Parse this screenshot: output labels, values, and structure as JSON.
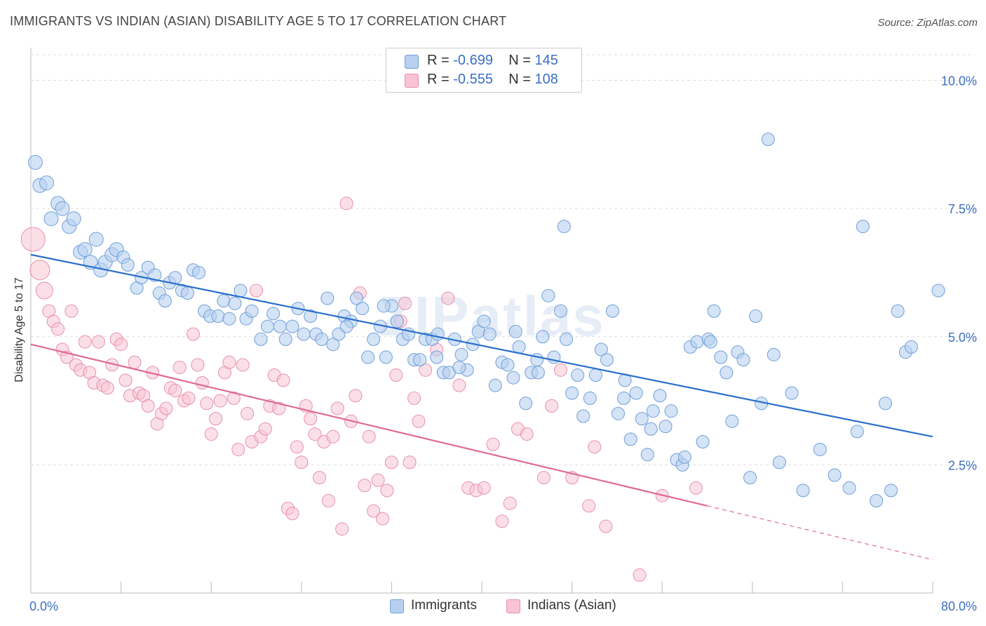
{
  "header": {
    "title": "IMMIGRANTS VS INDIAN (ASIAN) DISABILITY AGE 5 TO 17 CORRELATION CHART",
    "source": "Source: ZipAtlas.com"
  },
  "watermark": "ZIPatlas",
  "legend": {
    "r_label": "R = ",
    "n_label": "N = ",
    "rows": [
      {
        "r": "-0.699",
        "n": "145"
      },
      {
        "r": "-0.555",
        "n": "108"
      }
    ]
  },
  "colors": {
    "immigrants_fill": "#b8d0f0",
    "immigrants_stroke": "#6f9fd8",
    "immigrants_line": "#2a6fcc",
    "indians_fill": "#f8c4d4",
    "indians_stroke": "#e890ac",
    "indians_line": "#e06a94",
    "value_text": "#3b6fc4"
  },
  "chart_data": {
    "type": "scatter",
    "title": "IMMIGRANTS VS INDIAN (ASIAN) DISABILITY AGE 5 TO 17 CORRELATION CHART",
    "xlabel": "",
    "ylabel": "Disability Age 5 to 17",
    "xlim": [
      0,
      80
    ],
    "ylim": [
      0,
      10.5
    ],
    "x_tick_labels": [
      "0.0%",
      "80.0%"
    ],
    "y_ticks": [
      2.5,
      5.0,
      7.5,
      10.0
    ],
    "y_tick_labels": [
      "2.5%",
      "5.0%",
      "7.5%",
      "10.0%"
    ],
    "grid": true,
    "legend_position": "top-center",
    "series": [
      {
        "name": "Immigrants",
        "r": -0.699,
        "n": 145,
        "trend": {
          "x0": 0,
          "y0": 6.6,
          "x1": 80,
          "y1": 3.05
        },
        "points": [
          [
            0.4,
            8.4
          ],
          [
            0.8,
            7.95
          ],
          [
            1.4,
            8.0
          ],
          [
            1.8,
            7.3
          ],
          [
            2.4,
            7.6
          ],
          [
            2.8,
            7.5
          ],
          [
            3.4,
            7.15
          ],
          [
            3.8,
            7.3
          ],
          [
            4.4,
            6.65
          ],
          [
            4.8,
            6.7
          ],
          [
            5.3,
            6.45
          ],
          [
            5.8,
            6.9
          ],
          [
            6.2,
            6.3
          ],
          [
            6.6,
            6.45
          ],
          [
            7.2,
            6.6
          ],
          [
            7.6,
            6.7
          ],
          [
            8.2,
            6.55
          ],
          [
            8.6,
            6.4
          ],
          [
            9.4,
            5.95
          ],
          [
            9.8,
            6.15
          ],
          [
            10.4,
            6.35
          ],
          [
            11.0,
            6.2
          ],
          [
            11.4,
            5.85
          ],
          [
            11.9,
            5.7
          ],
          [
            12.3,
            6.05
          ],
          [
            12.8,
            6.15
          ],
          [
            13.4,
            5.9
          ],
          [
            13.9,
            5.85
          ],
          [
            14.4,
            6.3
          ],
          [
            14.9,
            6.25
          ],
          [
            15.4,
            5.5
          ],
          [
            15.9,
            5.4
          ],
          [
            16.6,
            5.4
          ],
          [
            17.1,
            5.7
          ],
          [
            17.6,
            5.35
          ],
          [
            18.1,
            5.65
          ],
          [
            18.6,
            5.9
          ],
          [
            19.1,
            5.35
          ],
          [
            19.6,
            5.5
          ],
          [
            20.4,
            4.95
          ],
          [
            21.0,
            5.2
          ],
          [
            21.5,
            5.45
          ],
          [
            22.1,
            5.2
          ],
          [
            22.6,
            4.95
          ],
          [
            23.2,
            5.2
          ],
          [
            23.7,
            5.55
          ],
          [
            24.2,
            5.05
          ],
          [
            24.8,
            5.4
          ],
          [
            25.3,
            5.05
          ],
          [
            25.8,
            4.95
          ],
          [
            26.3,
            5.75
          ],
          [
            26.8,
            4.85
          ],
          [
            27.3,
            5.05
          ],
          [
            27.8,
            5.4
          ],
          [
            28.4,
            5.3
          ],
          [
            28.9,
            5.75
          ],
          [
            29.4,
            5.55
          ],
          [
            29.9,
            4.6
          ],
          [
            30.4,
            4.95
          ],
          [
            31.0,
            5.2
          ],
          [
            31.5,
            4.6
          ],
          [
            32.0,
            5.6
          ],
          [
            32.5,
            5.3
          ],
          [
            33.0,
            4.95
          ],
          [
            33.5,
            5.05
          ],
          [
            34.0,
            4.55
          ],
          [
            34.5,
            4.55
          ],
          [
            35.0,
            4.95
          ],
          [
            35.6,
            4.95
          ],
          [
            36.1,
            5.05
          ],
          [
            36.6,
            4.3
          ],
          [
            37.1,
            4.3
          ],
          [
            37.6,
            4.95
          ],
          [
            38.2,
            4.65
          ],
          [
            38.7,
            4.35
          ],
          [
            39.2,
            4.85
          ],
          [
            39.7,
            5.1
          ],
          [
            40.2,
            5.3
          ],
          [
            40.7,
            5.05
          ],
          [
            41.2,
            4.05
          ],
          [
            41.8,
            4.5
          ],
          [
            42.3,
            4.45
          ],
          [
            42.8,
            4.2
          ],
          [
            43.3,
            4.8
          ],
          [
            43.9,
            3.7
          ],
          [
            44.4,
            4.3
          ],
          [
            44.9,
            4.55
          ],
          [
            45.4,
            5.0
          ],
          [
            45.9,
            5.8
          ],
          [
            46.4,
            4.6
          ],
          [
            47.0,
            5.5
          ],
          [
            47.5,
            4.95
          ],
          [
            48.0,
            3.9
          ],
          [
            48.5,
            4.25
          ],
          [
            49.0,
            3.45
          ],
          [
            49.6,
            3.8
          ],
          [
            50.1,
            4.25
          ],
          [
            50.6,
            4.75
          ],
          [
            51.1,
            4.55
          ],
          [
            51.6,
            5.5
          ],
          [
            52.1,
            3.5
          ],
          [
            52.7,
            4.15
          ],
          [
            53.2,
            3.0
          ],
          [
            53.7,
            3.9
          ],
          [
            54.2,
            3.4
          ],
          [
            54.7,
            2.7
          ],
          [
            55.2,
            3.55
          ],
          [
            55.8,
            3.85
          ],
          [
            56.3,
            3.25
          ],
          [
            56.8,
            3.55
          ],
          [
            57.3,
            2.6
          ],
          [
            57.8,
            2.5
          ],
          [
            58.5,
            4.8
          ],
          [
            59.1,
            4.9
          ],
          [
            59.6,
            2.95
          ],
          [
            60.1,
            4.95
          ],
          [
            60.6,
            5.5
          ],
          [
            61.2,
            4.6
          ],
          [
            61.7,
            4.3
          ],
          [
            62.2,
            3.35
          ],
          [
            62.7,
            4.7
          ],
          [
            63.2,
            4.55
          ],
          [
            63.8,
            2.25
          ],
          [
            64.3,
            5.4
          ],
          [
            64.8,
            3.7
          ],
          [
            65.4,
            8.85
          ],
          [
            65.9,
            4.65
          ],
          [
            66.4,
            2.55
          ],
          [
            67.5,
            3.9
          ],
          [
            68.5,
            2.0
          ],
          [
            70.0,
            2.8
          ],
          [
            71.3,
            2.3
          ],
          [
            72.6,
            2.05
          ],
          [
            73.3,
            3.15
          ],
          [
            73.8,
            7.15
          ],
          [
            75.0,
            1.8
          ],
          [
            75.8,
            3.7
          ],
          [
            76.3,
            2.0
          ],
          [
            76.9,
            5.5
          ],
          [
            77.6,
            4.7
          ],
          [
            78.1,
            4.8
          ],
          [
            80.5,
            5.9
          ],
          [
            47.3,
            7.15
          ],
          [
            58.0,
            2.65
          ],
          [
            45.0,
            4.3
          ],
          [
            31.3,
            5.6
          ],
          [
            38.0,
            4.4
          ],
          [
            28.0,
            5.2
          ],
          [
            43.0,
            5.1
          ],
          [
            36.0,
            4.6
          ],
          [
            60.3,
            4.9
          ],
          [
            55.0,
            3.2
          ],
          [
            52.6,
            3.8
          ]
        ]
      },
      {
        "name": "Indians (Asian)",
        "r": -0.555,
        "n": 108,
        "trend": {
          "x0": 0,
          "y0": 4.85,
          "x1": 60,
          "y1": 1.7,
          "dash_to_x": 80,
          "dash_to_y": 0.65
        },
        "points": [
          [
            0.2,
            6.9
          ],
          [
            0.8,
            6.3
          ],
          [
            1.2,
            5.9
          ],
          [
            1.6,
            5.5
          ],
          [
            2.0,
            5.3
          ],
          [
            2.4,
            5.15
          ],
          [
            2.8,
            4.75
          ],
          [
            3.2,
            4.6
          ],
          [
            3.6,
            5.5
          ],
          [
            4.0,
            4.45
          ],
          [
            4.4,
            4.35
          ],
          [
            4.8,
            4.9
          ],
          [
            5.2,
            4.3
          ],
          [
            5.6,
            4.1
          ],
          [
            6.0,
            4.9
          ],
          [
            6.4,
            4.05
          ],
          [
            6.8,
            4.0
          ],
          [
            7.2,
            4.45
          ],
          [
            7.6,
            4.95
          ],
          [
            8.0,
            4.85
          ],
          [
            8.4,
            4.15
          ],
          [
            8.8,
            3.85
          ],
          [
            9.2,
            4.5
          ],
          [
            9.6,
            3.9
          ],
          [
            10.0,
            3.85
          ],
          [
            10.4,
            3.65
          ],
          [
            10.8,
            4.3
          ],
          [
            11.2,
            3.3
          ],
          [
            11.6,
            3.5
          ],
          [
            12.0,
            3.6
          ],
          [
            12.4,
            4.0
          ],
          [
            12.8,
            3.95
          ],
          [
            13.2,
            4.4
          ],
          [
            13.6,
            3.75
          ],
          [
            14.0,
            3.8
          ],
          [
            14.4,
            5.05
          ],
          [
            14.8,
            4.45
          ],
          [
            15.2,
            4.1
          ],
          [
            15.6,
            3.7
          ],
          [
            16.0,
            3.1
          ],
          [
            16.4,
            3.4
          ],
          [
            16.8,
            3.75
          ],
          [
            17.2,
            4.3
          ],
          [
            17.6,
            4.5
          ],
          [
            18.0,
            3.8
          ],
          [
            18.4,
            2.8
          ],
          [
            18.8,
            4.45
          ],
          [
            19.2,
            3.5
          ],
          [
            19.6,
            2.95
          ],
          [
            20.0,
            5.9
          ],
          [
            20.4,
            3.05
          ],
          [
            20.8,
            3.2
          ],
          [
            21.2,
            3.65
          ],
          [
            21.6,
            4.25
          ],
          [
            22.0,
            3.6
          ],
          [
            22.4,
            4.15
          ],
          [
            22.8,
            1.65
          ],
          [
            23.2,
            1.55
          ],
          [
            23.6,
            2.85
          ],
          [
            24.0,
            2.55
          ],
          [
            24.4,
            3.65
          ],
          [
            24.8,
            3.4
          ],
          [
            25.2,
            3.1
          ],
          [
            25.6,
            2.25
          ],
          [
            26.0,
            2.95
          ],
          [
            26.4,
            1.8
          ],
          [
            26.8,
            3.05
          ],
          [
            27.2,
            3.6
          ],
          [
            27.6,
            1.25
          ],
          [
            28.0,
            7.6
          ],
          [
            28.4,
            3.35
          ],
          [
            28.8,
            3.85
          ],
          [
            29.2,
            5.85
          ],
          [
            29.6,
            2.1
          ],
          [
            30.0,
            3.05
          ],
          [
            30.4,
            1.6
          ],
          [
            30.8,
            2.2
          ],
          [
            31.2,
            1.45
          ],
          [
            31.6,
            2.0
          ],
          [
            32.0,
            2.55
          ],
          [
            32.4,
            4.25
          ],
          [
            32.8,
            5.3
          ],
          [
            33.2,
            5.65
          ],
          [
            33.6,
            2.55
          ],
          [
            34.0,
            3.8
          ],
          [
            34.4,
            3.35
          ],
          [
            35.0,
            4.35
          ],
          [
            36.0,
            4.75
          ],
          [
            37.0,
            5.75
          ],
          [
            38.0,
            4.05
          ],
          [
            38.8,
            2.05
          ],
          [
            39.5,
            2.0
          ],
          [
            40.2,
            2.05
          ],
          [
            41.0,
            2.9
          ],
          [
            41.8,
            1.4
          ],
          [
            42.5,
            1.75
          ],
          [
            43.2,
            3.2
          ],
          [
            44.0,
            3.1
          ],
          [
            45.5,
            2.25
          ],
          [
            46.2,
            3.65
          ],
          [
            47.0,
            4.35
          ],
          [
            48.0,
            2.25
          ],
          [
            49.5,
            1.7
          ],
          [
            50.0,
            2.85
          ],
          [
            51.0,
            1.3
          ],
          [
            56.0,
            1.9
          ],
          [
            59.0,
            2.05
          ],
          [
            54.0,
            0.35
          ]
        ]
      }
    ]
  },
  "bottom_legend": [
    {
      "label": "Immigrants"
    },
    {
      "label": "Indians (Asian)"
    }
  ]
}
